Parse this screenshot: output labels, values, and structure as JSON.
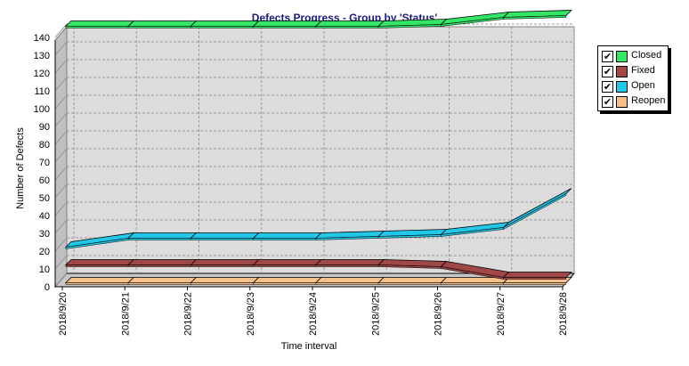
{
  "chart_data": {
    "type": "line",
    "title": "Defects Progress - Group by 'Status'",
    "xlabel": "Time interval",
    "ylabel": "Number of Defects",
    "categories": [
      "2018/9/20",
      "2018/9/21",
      "2018/9/22",
      "2018/9/23",
      "2018/9/24",
      "2018/9/25",
      "2018/9/26",
      "2018/9/27",
      "2018/9/28"
    ],
    "ylim": [
      0,
      150
    ],
    "yticks": [
      0,
      10,
      20,
      30,
      40,
      50,
      60,
      70,
      80,
      90,
      100,
      110,
      120,
      130,
      140
    ],
    "grid": true,
    "legend_position": "right",
    "series": [
      {
        "name": "Closed",
        "color": "#33e666",
        "values": [
          144,
          144,
          144,
          144,
          144,
          144,
          145,
          149,
          150
        ]
      },
      {
        "name": "Fixed",
        "color": "#a04848",
        "values": [
          10,
          10,
          10,
          10,
          10,
          10,
          9,
          3,
          3
        ]
      },
      {
        "name": "Open",
        "color": "#22c8e8",
        "values": [
          20,
          25,
          25,
          25,
          25,
          26,
          27,
          31,
          50
        ]
      },
      {
        "name": "Reopen",
        "color": "#f5c08a",
        "values": [
          0,
          0,
          0,
          0,
          0,
          0,
          0,
          0,
          0
        ]
      }
    ]
  }
}
